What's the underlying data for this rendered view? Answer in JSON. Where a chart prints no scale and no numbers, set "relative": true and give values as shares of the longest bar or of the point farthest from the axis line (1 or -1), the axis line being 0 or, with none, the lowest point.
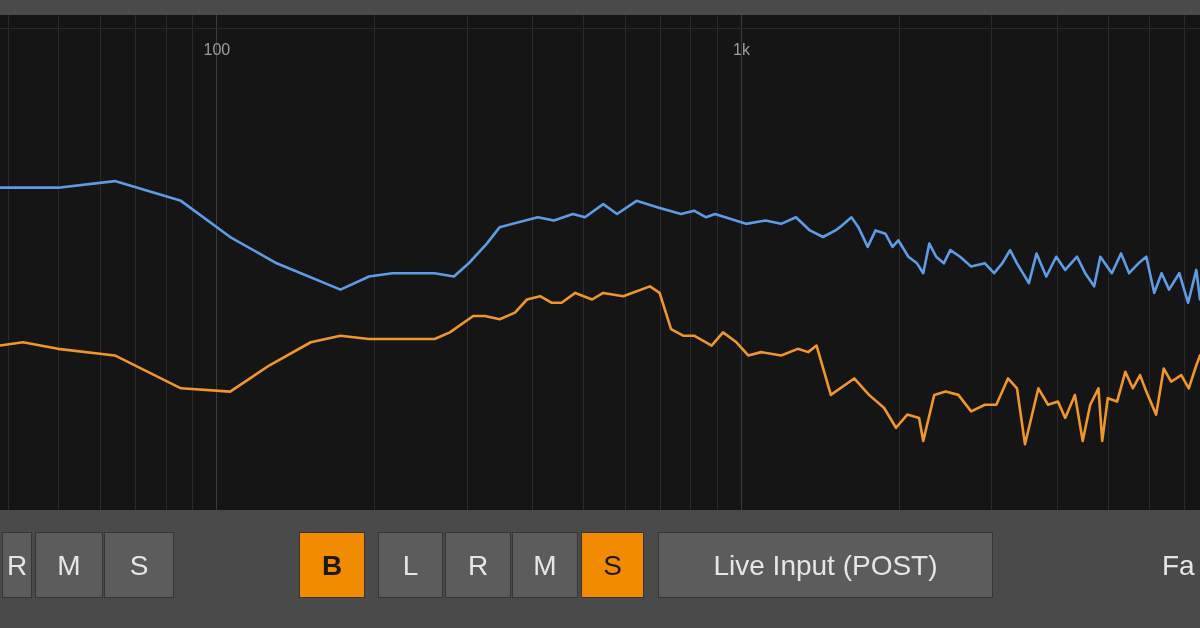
{
  "chart_data": {
    "type": "line",
    "relative": true,
    "log": "x",
    "xlim": [
      38.6,
      7480
    ],
    "xticks": [
      {
        "value": 40,
        "label": null
      },
      {
        "value": 50,
        "label": null
      },
      {
        "value": 60,
        "label": null
      },
      {
        "value": 70,
        "label": null
      },
      {
        "value": 80,
        "label": null
      },
      {
        "value": 90,
        "label": null
      },
      {
        "value": 100,
        "label": "100"
      },
      {
        "value": 200,
        "label": null
      },
      {
        "value": 300,
        "label": null
      },
      {
        "value": 400,
        "label": null
      },
      {
        "value": 500,
        "label": null
      },
      {
        "value": 600,
        "label": null
      },
      {
        "value": 700,
        "label": null
      },
      {
        "value": 800,
        "label": null
      },
      {
        "value": 900,
        "label": null
      },
      {
        "value": 1000,
        "label": "1k"
      },
      {
        "value": 2000,
        "label": null
      },
      {
        "value": 3000,
        "label": null
      },
      {
        "value": 4000,
        "label": null
      },
      {
        "value": 5000,
        "label": null
      },
      {
        "value": 6000,
        "label": null
      },
      {
        "value": 7000,
        "label": null
      }
    ],
    "tick_labels": "x",
    "grid": true,
    "series": [
      {
        "color": "#5f9ce8",
        "x": [
          38.6,
          42.7,
          49.8,
          63.9,
          85.4,
          106,
          130,
          172,
          195,
          216,
          260,
          283,
          302,
          327,
          346,
          409,
          439,
          477,
          503,
          545,
          579,
          631,
          693,
          767,
          812,
          856,
          890,
          1020,
          1110,
          1190,
          1270,
          1350,
          1430,
          1510,
          1540,
          1620,
          1670,
          1740,
          1800,
          1880,
          1940,
          1990,
          2080,
          2160,
          2220,
          2280,
          2350,
          2430,
          2500,
          2610,
          2740,
          2910,
          3030,
          3140,
          3250,
          3350,
          3530,
          3650,
          3810,
          3980,
          4140,
          4360,
          4520,
          4700,
          4830,
          5080,
          5290,
          5480,
          5710,
          5910,
          6120,
          6320,
          6530,
          6830,
          7100,
          7360,
          7480
        ],
        "values": [
          0.98,
          0.98,
          0.98,
          1.0,
          0.94,
          0.83,
          0.75,
          0.67,
          0.71,
          0.72,
          0.72,
          0.71,
          0.75,
          0.81,
          0.86,
          0.89,
          0.88,
          0.9,
          0.89,
          0.93,
          0.9,
          0.94,
          0.92,
          0.9,
          0.91,
          0.89,
          0.9,
          0.87,
          0.88,
          0.87,
          0.89,
          0.85,
          0.83,
          0.85,
          0.86,
          0.89,
          0.86,
          0.8,
          0.85,
          0.84,
          0.8,
          0.82,
          0.77,
          0.75,
          0.72,
          0.81,
          0.77,
          0.75,
          0.79,
          0.77,
          0.74,
          0.75,
          0.72,
          0.75,
          0.79,
          0.75,
          0.69,
          0.78,
          0.71,
          0.77,
          0.73,
          0.77,
          0.72,
          0.68,
          0.77,
          0.72,
          0.78,
          0.72,
          0.75,
          0.77,
          0.66,
          0.72,
          0.67,
          0.72,
          0.63,
          0.73,
          0.64
        ]
      },
      {
        "color": "#f0962a",
        "x": [
          38.6,
          42.7,
          49.8,
          63.9,
          85.4,
          106,
          126,
          151,
          172,
          195,
          260,
          278,
          308,
          324,
          346,
          370,
          390,
          413,
          435,
          454,
          482,
          519,
          545,
          595,
          669,
          698,
          734,
          774,
          812,
          877,
          922,
          978,
          1030,
          1090,
          1190,
          1280,
          1340,
          1390,
          1480,
          1640,
          1750,
          1870,
          1970,
          2070,
          2180,
          2220,
          2330,
          2450,
          2590,
          2740,
          2910,
          3060,
          3220,
          3350,
          3470,
          3680,
          3840,
          4010,
          4140,
          4320,
          4470,
          4620,
          4790,
          4870,
          4990,
          5200,
          5390,
          5570,
          5750,
          5910,
          6170,
          6380,
          6590,
          6890,
          7120,
          7360,
          7480
        ],
        "values": [
          0.5,
          0.51,
          0.49,
          0.47,
          0.37,
          0.36,
          0.44,
          0.51,
          0.53,
          0.52,
          0.52,
          0.54,
          0.59,
          0.59,
          0.58,
          0.6,
          0.64,
          0.65,
          0.63,
          0.63,
          0.66,
          0.64,
          0.66,
          0.65,
          0.68,
          0.66,
          0.55,
          0.53,
          0.53,
          0.5,
          0.54,
          0.51,
          0.47,
          0.48,
          0.47,
          0.49,
          0.48,
          0.5,
          0.35,
          0.4,
          0.35,
          0.31,
          0.25,
          0.29,
          0.28,
          0.21,
          0.35,
          0.36,
          0.35,
          0.3,
          0.32,
          0.32,
          0.4,
          0.37,
          0.2,
          0.37,
          0.32,
          0.33,
          0.28,
          0.35,
          0.21,
          0.32,
          0.37,
          0.21,
          0.34,
          0.33,
          0.42,
          0.37,
          0.41,
          0.36,
          0.29,
          0.43,
          0.39,
          0.41,
          0.37,
          0.44,
          0.47
        ]
      }
    ],
    "annotations": [
      "R",
      "M",
      "S",
      "B",
      "L",
      "R",
      "M",
      "S",
      "Live Input (POST)",
      "Fa"
    ]
  }
}
